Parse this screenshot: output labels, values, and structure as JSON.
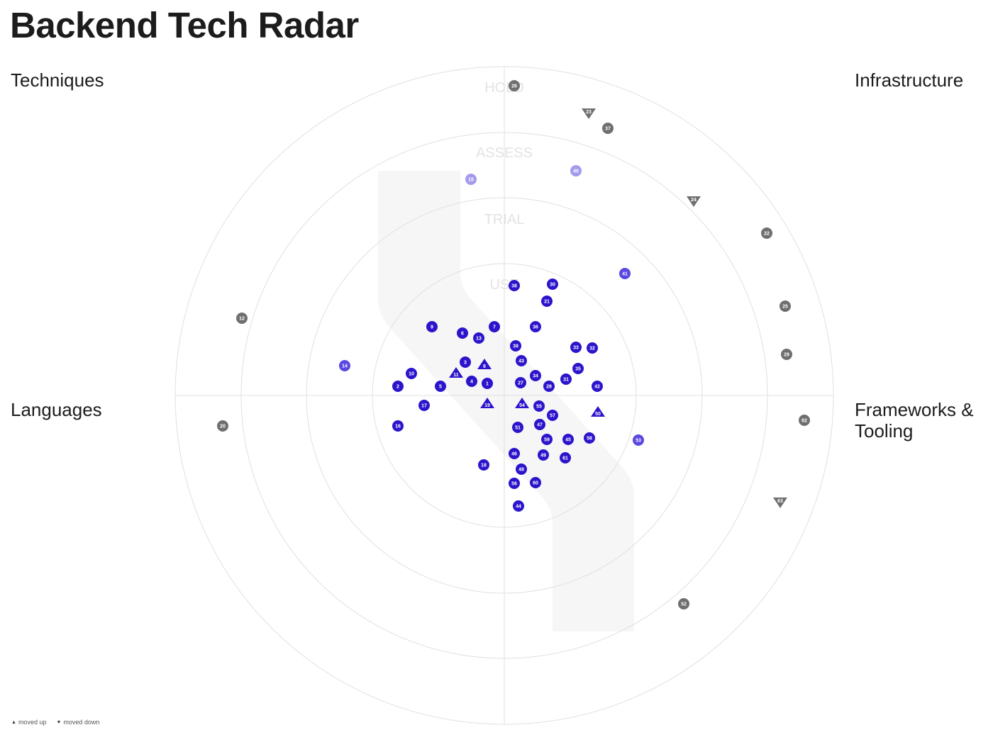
{
  "title": "Backend Tech Radar",
  "quadrants": {
    "top_left": "Techniques",
    "top_right": "Infrastructure",
    "bottom_left": "Languages",
    "bottom_right": "Frameworks & Tooling"
  },
  "rings": [
    "USE",
    "TRIAL",
    "ASSESS",
    "HOLD"
  ],
  "colors": {
    "use": "#2c14cc",
    "trial": "#5a48e2",
    "assess": "#a49aee",
    "hold": "#6f6f6f",
    "rings": "#e0e0e0",
    "band": "#f6f6f6"
  },
  "legend": {
    "moved_up_symbol": "▲",
    "moved_up": "moved up",
    "moved_down_symbol": "▼",
    "moved_down": "moved down"
  },
  "blips": [
    {
      "id": "1",
      "quadrant": "Languages",
      "ring": "USE",
      "movement": "none"
    },
    {
      "id": "2",
      "quadrant": "Languages",
      "ring": "USE",
      "movement": "none"
    },
    {
      "id": "3",
      "quadrant": "Techniques",
      "ring": "USE",
      "movement": "none"
    },
    {
      "id": "4",
      "quadrant": "Languages",
      "ring": "USE",
      "movement": "none"
    },
    {
      "id": "5",
      "quadrant": "Languages",
      "ring": "USE",
      "movement": "none"
    },
    {
      "id": "6",
      "quadrant": "Techniques",
      "ring": "USE",
      "movement": "none"
    },
    {
      "id": "7",
      "quadrant": "Techniques",
      "ring": "USE",
      "movement": "none"
    },
    {
      "id": "8",
      "quadrant": "Techniques",
      "ring": "USE",
      "movement": "up"
    },
    {
      "id": "9",
      "quadrant": "Techniques",
      "ring": "USE",
      "movement": "none"
    },
    {
      "id": "10",
      "quadrant": "Techniques",
      "ring": "USE",
      "movement": "none"
    },
    {
      "id": "11",
      "quadrant": "Techniques",
      "ring": "USE",
      "movement": "up"
    },
    {
      "id": "12",
      "quadrant": "Techniques",
      "ring": "HOLD",
      "movement": "none"
    },
    {
      "id": "13",
      "quadrant": "Techniques",
      "ring": "USE",
      "movement": "none"
    },
    {
      "id": "14",
      "quadrant": "Techniques",
      "ring": "TRIAL",
      "movement": "none"
    },
    {
      "id": "15",
      "quadrant": "Techniques",
      "ring": "ASSESS",
      "movement": "none"
    },
    {
      "id": "16",
      "quadrant": "Languages",
      "ring": "USE",
      "movement": "none"
    },
    {
      "id": "17",
      "quadrant": "Languages",
      "ring": "USE",
      "movement": "none"
    },
    {
      "id": "18",
      "quadrant": "Languages",
      "ring": "USE",
      "movement": "none"
    },
    {
      "id": "19",
      "quadrant": "Languages",
      "ring": "USE",
      "movement": "up"
    },
    {
      "id": "20",
      "quadrant": "Languages",
      "ring": "HOLD",
      "movement": "none"
    },
    {
      "id": "21",
      "quadrant": "Infrastructure",
      "ring": "USE",
      "movement": "none"
    },
    {
      "id": "22",
      "quadrant": "Infrastructure",
      "ring": "HOLD",
      "movement": "none"
    },
    {
      "id": "23",
      "quadrant": "Infrastructure",
      "ring": "HOLD",
      "movement": "down"
    },
    {
      "id": "24",
      "quadrant": "Infrastructure",
      "ring": "HOLD",
      "movement": "down"
    },
    {
      "id": "25",
      "quadrant": "Infrastructure",
      "ring": "HOLD",
      "movement": "none"
    },
    {
      "id": "26",
      "quadrant": "Infrastructure",
      "ring": "HOLD",
      "movement": "none"
    },
    {
      "id": "27",
      "quadrant": "Infrastructure",
      "ring": "USE",
      "movement": "none"
    },
    {
      "id": "28",
      "quadrant": "Infrastructure",
      "ring": "USE",
      "movement": "none"
    },
    {
      "id": "29",
      "quadrant": "Infrastructure",
      "ring": "HOLD",
      "movement": "none"
    },
    {
      "id": "30",
      "quadrant": "Infrastructure",
      "ring": "USE",
      "movement": "none"
    },
    {
      "id": "31",
      "quadrant": "Infrastructure",
      "ring": "USE",
      "movement": "none"
    },
    {
      "id": "32",
      "quadrant": "Infrastructure",
      "ring": "USE",
      "movement": "none"
    },
    {
      "id": "33",
      "quadrant": "Infrastructure",
      "ring": "USE",
      "movement": "none"
    },
    {
      "id": "34",
      "quadrant": "Infrastructure",
      "ring": "USE",
      "movement": "none"
    },
    {
      "id": "35",
      "quadrant": "Infrastructure",
      "ring": "USE",
      "movement": "none"
    },
    {
      "id": "36",
      "quadrant": "Infrastructure",
      "ring": "USE",
      "movement": "none"
    },
    {
      "id": "37",
      "quadrant": "Infrastructure",
      "ring": "HOLD",
      "movement": "none"
    },
    {
      "id": "38",
      "quadrant": "Infrastructure",
      "ring": "USE",
      "movement": "none"
    },
    {
      "id": "39",
      "quadrant": "Infrastructure",
      "ring": "USE",
      "movement": "none"
    },
    {
      "id": "40",
      "quadrant": "Infrastructure",
      "ring": "ASSESS",
      "movement": "none"
    },
    {
      "id": "41",
      "quadrant": "Infrastructure",
      "ring": "TRIAL",
      "movement": "none"
    },
    {
      "id": "42",
      "quadrant": "Infrastructure",
      "ring": "USE",
      "movement": "none"
    },
    {
      "id": "43",
      "quadrant": "Infrastructure",
      "ring": "USE",
      "movement": "none"
    },
    {
      "id": "44",
      "quadrant": "Frameworks & Tooling",
      "ring": "USE",
      "movement": "none"
    },
    {
      "id": "45",
      "quadrant": "Frameworks & Tooling",
      "ring": "USE",
      "movement": "none"
    },
    {
      "id": "46",
      "quadrant": "Frameworks & Tooling",
      "ring": "USE",
      "movement": "none"
    },
    {
      "id": "47",
      "quadrant": "Frameworks & Tooling",
      "ring": "USE",
      "movement": "none"
    },
    {
      "id": "48",
      "quadrant": "Frameworks & Tooling",
      "ring": "USE",
      "movement": "none"
    },
    {
      "id": "49",
      "quadrant": "Frameworks & Tooling",
      "ring": "USE",
      "movement": "none"
    },
    {
      "id": "50",
      "quadrant": "Frameworks & Tooling",
      "ring": "USE",
      "movement": "up"
    },
    {
      "id": "51",
      "quadrant": "Frameworks & Tooling",
      "ring": "USE",
      "movement": "none"
    },
    {
      "id": "52",
      "quadrant": "Frameworks & Tooling",
      "ring": "HOLD",
      "movement": "none"
    },
    {
      "id": "53",
      "quadrant": "Frameworks & Tooling",
      "ring": "TRIAL",
      "movement": "none"
    },
    {
      "id": "54",
      "quadrant": "Frameworks & Tooling",
      "ring": "USE",
      "movement": "up"
    },
    {
      "id": "55",
      "quadrant": "Frameworks & Tooling",
      "ring": "USE",
      "movement": "none"
    },
    {
      "id": "56",
      "quadrant": "Frameworks & Tooling",
      "ring": "USE",
      "movement": "none"
    },
    {
      "id": "57",
      "quadrant": "Frameworks & Tooling",
      "ring": "USE",
      "movement": "none"
    },
    {
      "id": "58",
      "quadrant": "Frameworks & Tooling",
      "ring": "USE",
      "movement": "none"
    },
    {
      "id": "59",
      "quadrant": "Frameworks & Tooling",
      "ring": "USE",
      "movement": "none"
    },
    {
      "id": "60",
      "quadrant": "Frameworks & Tooling",
      "ring": "USE",
      "movement": "none"
    },
    {
      "id": "61",
      "quadrant": "Frameworks & Tooling",
      "ring": "USE",
      "movement": "none"
    },
    {
      "id": "62",
      "quadrant": "Frameworks & Tooling",
      "ring": "HOLD",
      "movement": "none"
    },
    {
      "id": "63",
      "quadrant": "Frameworks & Tooling",
      "ring": "HOLD",
      "movement": "down"
    }
  ]
}
